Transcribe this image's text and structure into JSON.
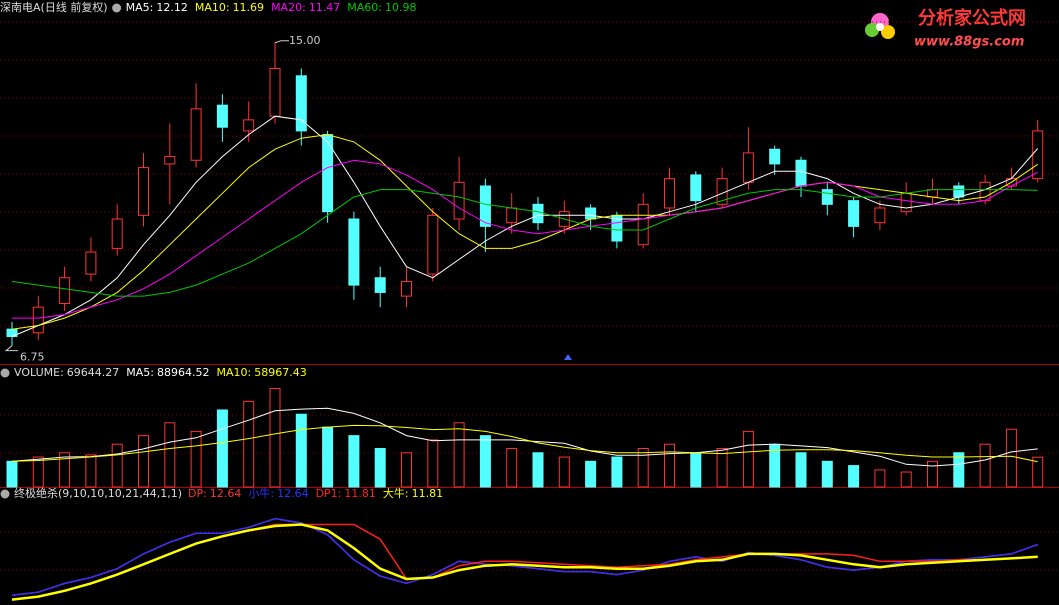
{
  "chart_data": [
    {
      "type": "candlestick",
      "title": "深南电A(日线 前复权)",
      "open": [
        7.2,
        7.1,
        7.9,
        8.7,
        9.4,
        10.3,
        11.7,
        11.8,
        13.3,
        12.6,
        13.0,
        14.1,
        12.5,
        10.2,
        8.6,
        8.1,
        8.7,
        10.2,
        11.1,
        10.1,
        10.6,
        10.0,
        10.5,
        10.3,
        9.5,
        10.5,
        11.4,
        10.6,
        11.2,
        12.1,
        11.8,
        11.0,
        10.7,
        10.1,
        10.4,
        10.8,
        11.1,
        10.7,
        11.1,
        11.3
      ],
      "high": [
        7.4,
        8.1,
        8.9,
        9.7,
        10.6,
        12.0,
        12.8,
        13.9,
        13.6,
        13.4,
        15.0,
        14.3,
        12.6,
        10.4,
        8.9,
        8.9,
        10.5,
        11.9,
        11.3,
        10.9,
        10.8,
        10.7,
        10.6,
        10.4,
        10.9,
        11.6,
        11.5,
        11.6,
        12.7,
        12.2,
        11.9,
        11.2,
        10.8,
        10.7,
        11.2,
        11.3,
        11.2,
        11.4,
        11.6,
        12.9
      ],
      "low": [
        6.75,
        6.9,
        7.7,
        8.5,
        9.2,
        10.0,
        10.6,
        11.6,
        12.3,
        12.3,
        12.8,
        12.2,
        10.1,
        8.0,
        7.8,
        7.8,
        8.5,
        9.9,
        9.3,
        9.8,
        9.9,
        9.8,
        9.9,
        9.4,
        9.4,
        10.3,
        10.4,
        10.5,
        11.0,
        11.4,
        10.8,
        10.3,
        9.7,
        9.9,
        10.3,
        10.6,
        10.6,
        10.6,
        11.0,
        11.2
      ],
      "close": [
        7.0,
        7.8,
        8.6,
        9.3,
        10.2,
        11.6,
        11.9,
        13.2,
        12.7,
        12.9,
        14.3,
        12.6,
        10.4,
        8.4,
        8.2,
        8.5,
        10.3,
        11.2,
        10.0,
        10.5,
        10.1,
        10.4,
        10.2,
        9.6,
        10.6,
        11.3,
        10.7,
        11.3,
        12.0,
        11.7,
        11.1,
        10.6,
        10.0,
        10.5,
        10.9,
        11.0,
        10.8,
        11.2,
        11.3,
        12.6
      ],
      "up_color": "#ff3232",
      "down_color": "#54ffff",
      "series": [
        {
          "name": "MA5:",
          "color": "#ffffff",
          "values": [
            7.0,
            7.3,
            7.6,
            8.0,
            8.6,
            9.5,
            10.3,
            11.2,
            11.9,
            12.5,
            13.0,
            12.9,
            12.3,
            11.2,
            10.0,
            8.9,
            8.6,
            9.1,
            9.6,
            10.0,
            10.3,
            10.3,
            10.3,
            10.2,
            10.2,
            10.4,
            10.6,
            10.9,
            11.2,
            11.5,
            11.5,
            11.3,
            10.9,
            10.6,
            10.5,
            10.6,
            10.8,
            11.0,
            11.3,
            12.12
          ]
        },
        {
          "name": "MA10:",
          "color": "#ffff00",
          "values": [
            7.2,
            7.3,
            7.5,
            7.8,
            8.2,
            8.8,
            9.5,
            10.2,
            10.9,
            11.6,
            12.1,
            12.4,
            12.5,
            12.3,
            11.8,
            11.1,
            10.4,
            9.8,
            9.4,
            9.4,
            9.6,
            9.9,
            10.2,
            10.3,
            10.3,
            10.3,
            10.4,
            10.5,
            10.7,
            10.9,
            11.1,
            11.2,
            11.1,
            11.0,
            10.9,
            10.8,
            10.7,
            10.8,
            11.2,
            11.69
          ]
        },
        {
          "name": "MA20:",
          "color": "#ff00ff",
          "values": [
            7.5,
            7.5,
            7.6,
            7.8,
            8.0,
            8.3,
            8.7,
            9.2,
            9.7,
            10.2,
            10.7,
            11.2,
            11.6,
            11.8,
            11.7,
            11.4,
            11.0,
            10.5,
            10.1,
            9.9,
            9.8,
            9.9,
            10.0,
            10.1,
            10.2,
            10.3,
            10.4,
            10.5,
            10.7,
            10.9,
            11.1,
            11.2,
            11.1,
            10.8,
            10.7,
            10.6,
            10.6,
            10.7,
            11.1,
            11.47
          ]
        },
        {
          "name": "MA60:",
          "color": "#00c800",
          "values": [
            8.5,
            8.4,
            8.3,
            8.2,
            8.1,
            8.1,
            8.2,
            8.4,
            8.7,
            9.0,
            9.4,
            9.8,
            10.3,
            10.8,
            11.0,
            11.0,
            10.9,
            10.8,
            10.6,
            10.5,
            10.4,
            10.2,
            10.0,
            9.9,
            9.9,
            10.2,
            10.5,
            10.7,
            10.9,
            11.0,
            11.0,
            10.9,
            10.8,
            10.8,
            10.9,
            11.0,
            11.0,
            11.0,
            11.0,
            10.98
          ]
        }
      ],
      "max_label": {
        "value": 15.0,
        "label": "15.00"
      },
      "min_label": {
        "value": 6.75,
        "label": "6.75"
      },
      "ylim": [
        6.36,
        15.62
      ]
    },
    {
      "type": "bar",
      "title": "VOLUME:",
      "color_by": "candle",
      "values": [
        60000,
        70000,
        80000,
        75000,
        100000,
        120000,
        150000,
        130000,
        180000,
        200000,
        230000,
        170000,
        140000,
        120000,
        90000,
        80000,
        110000,
        150000,
        120000,
        90000,
        80000,
        70000,
        60000,
        70000,
        90000,
        100000,
        80000,
        90000,
        130000,
        100000,
        80000,
        60000,
        50000,
        40000,
        35000,
        60000,
        80000,
        100000,
        135000,
        69644.27
      ],
      "series": [
        {
          "name": "MA5:",
          "color": "#ffffff",
          "values": [
            60000,
            65000,
            70000,
            71000,
            77000,
            89000,
            105000,
            115000,
            136000,
            156000,
            178000,
            182000,
            184000,
            172000,
            150000,
            120000,
            108000,
            110000,
            110000,
            110000,
            106000,
            102000,
            84000,
            74000,
            74000,
            78000,
            80000,
            86000,
            98000,
            100000,
            96000,
            92000,
            82000,
            72000,
            53000,
            49000,
            53000,
            63000,
            82000,
            88964.52
          ]
        },
        {
          "name": "MA10:",
          "color": "#ffff00",
          "values": [
            60000,
            62000,
            66000,
            70000,
            75000,
            82000,
            90000,
            96000,
            104000,
            113000,
            124000,
            134000,
            140000,
            144000,
            143000,
            139000,
            134000,
            136000,
            130000,
            118000,
            103000,
            93000,
            85000,
            80000,
            80000,
            82000,
            80000,
            78000,
            82000,
            86000,
            87000,
            87000,
            85000,
            80000,
            74000,
            70000,
            70000,
            71000,
            72000,
            58967.43
          ]
        }
      ],
      "ylim": [
        0,
        250000
      ]
    },
    {
      "type": "line",
      "title": "终极绝杀(9,10,10,10,21,44,1,1)",
      "series": [
        {
          "name": "DP:",
          "color": "#ff3232",
          "values": [
            9.2,
            9.4,
            10.0,
            10.4,
            11.0,
            12.0,
            12.8,
            13.4,
            13.4,
            13.8,
            14.4,
            14.1,
            13.3,
            11.6,
            10.5,
            10.0,
            10.6,
            11.5,
            11.3,
            11.2,
            11.0,
            10.8,
            10.8,
            10.6,
            10.9,
            11.5,
            11.8,
            11.5,
            12.1,
            11.9,
            11.6,
            11.1,
            10.9,
            11.1,
            11.5,
            11.6,
            11.6,
            11.8,
            12.0,
            12.64
          ]
        },
        {
          "name": "小牛:",
          "color": "#3030ff",
          "values": [
            9.2,
            9.4,
            10.0,
            10.4,
            11.0,
            12.0,
            12.8,
            13.4,
            13.4,
            13.8,
            14.4,
            14.1,
            13.3,
            11.6,
            10.5,
            10.0,
            10.6,
            11.5,
            11.3,
            11.2,
            11.0,
            10.8,
            10.8,
            10.6,
            10.9,
            11.5,
            11.8,
            11.5,
            12.1,
            11.9,
            11.6,
            11.1,
            10.9,
            11.1,
            11.5,
            11.6,
            11.6,
            11.8,
            12.0,
            12.64
          ]
        },
        {
          "name": "DP1:",
          "color": "#ff2020",
          "values": [
            8.9,
            9.1,
            9.5,
            10.0,
            10.6,
            11.3,
            12.0,
            12.7,
            13.2,
            13.6,
            14.0,
            14.0,
            14.0,
            14.0,
            13.0,
            10.3,
            10.4,
            11.2,
            11.5,
            11.5,
            11.4,
            11.3,
            11.2,
            11.1,
            11.2,
            11.3,
            11.6,
            11.8,
            12.0,
            12.0,
            12.0,
            12.0,
            11.9,
            11.5,
            11.5,
            11.5,
            11.6,
            11.6,
            11.7,
            11.81
          ]
        },
        {
          "name": "大牛:",
          "color": "#ffff00",
          "values": [
            8.9,
            9.1,
            9.5,
            10.0,
            10.6,
            11.3,
            12.0,
            12.7,
            13.2,
            13.6,
            13.9,
            14.0,
            13.6,
            12.4,
            11.0,
            10.3,
            10.4,
            10.9,
            11.2,
            11.3,
            11.2,
            11.1,
            11.1,
            11.0,
            11.0,
            11.2,
            11.5,
            11.6,
            12.0,
            12.0,
            11.9,
            11.6,
            11.3,
            11.1,
            11.3,
            11.4,
            11.5,
            11.6,
            11.7,
            11.81
          ]
        }
      ],
      "ylim": [
        8.6,
        15.8
      ]
    }
  ],
  "watermark": {
    "title": "分析家公式网",
    "url": "www.88gs.com"
  }
}
